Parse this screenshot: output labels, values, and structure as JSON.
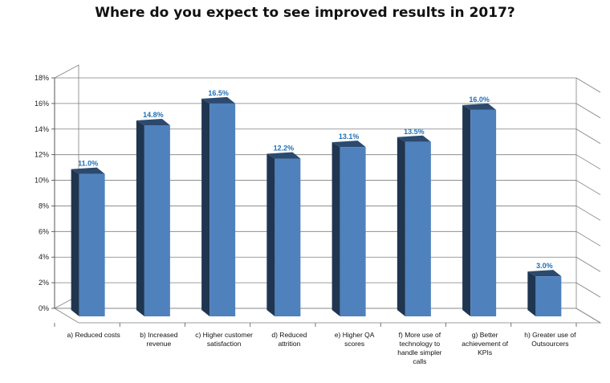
{
  "chart_data": {
    "type": "bar",
    "title": "Where do you expect to see improved results in 2017?",
    "xlabel": "",
    "ylabel": "",
    "ylim": [
      0,
      18
    ],
    "yticks": [
      0,
      2,
      4,
      6,
      8,
      10,
      12,
      14,
      16,
      18
    ],
    "ytick_labels": [
      "0%",
      "2%",
      "4%",
      "6%",
      "8%",
      "10%",
      "12%",
      "14%",
      "16%",
      "18%"
    ],
    "grid": true,
    "legend": "none",
    "categories": [
      [
        "a) Reduced costs"
      ],
      [
        "b) Increased",
        "revenue"
      ],
      [
        "c) Higher customer",
        "satisfaction"
      ],
      [
        "d) Reduced",
        "attrition"
      ],
      [
        "e) Higher QA",
        "scores"
      ],
      [
        "f) More use of",
        "technology to",
        "handle simpler",
        "calls"
      ],
      [
        "g) Better",
        "achievement of",
        "KPIs"
      ],
      [
        "h) Greater use of",
        "Outsourcers"
      ]
    ],
    "values": [
      11.0,
      14.8,
      16.5,
      12.2,
      13.1,
      13.5,
      16.0,
      3.0
    ],
    "data_labels": [
      "11.0%",
      "14.8%",
      "16.5%",
      "12.2%",
      "13.1%",
      "13.5%",
      "16.0%",
      "3.0%"
    ],
    "colors": {
      "bar_front": "#4f81bd",
      "bar_side": "#1f3550",
      "bar_top": "#2c4a6e",
      "grid": "#7f7f7f",
      "data_label": "#1f6fb5"
    }
  }
}
